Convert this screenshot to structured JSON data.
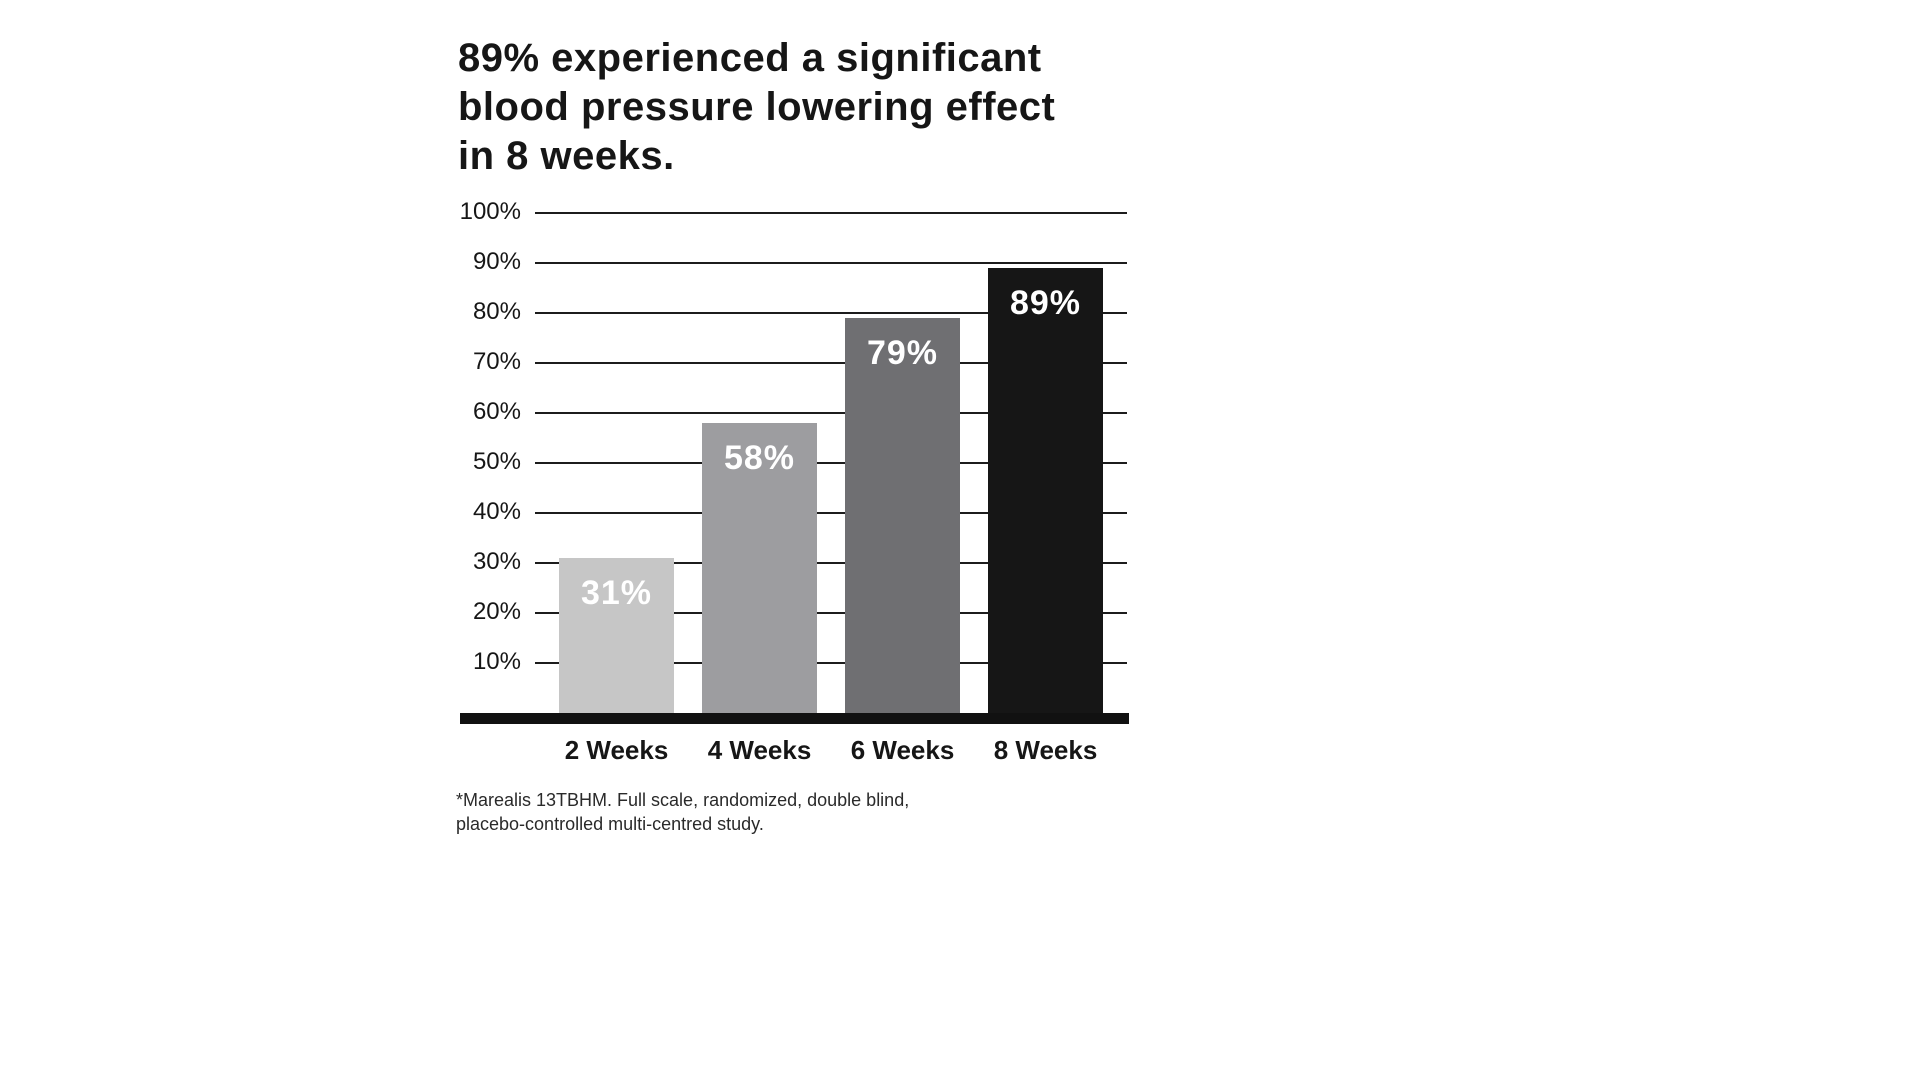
{
  "chart_data": {
    "type": "bar",
    "title": "89% experienced a significant\nblood pressure lowering effect\nin 8 weeks.",
    "categories": [
      "2 Weeks",
      "4 Weeks",
      "6 Weeks",
      "8 Weeks"
    ],
    "values": [
      31,
      58,
      79,
      89
    ],
    "value_labels": [
      "31%",
      "58%",
      "79%",
      "89%"
    ],
    "bar_colors": [
      "#c6c6c6",
      "#9d9da0",
      "#6f6f72",
      "#161616"
    ],
    "xlabel": "",
    "ylabel": "",
    "ylim": [
      0,
      100
    ],
    "yticks": [
      10,
      20,
      30,
      40,
      50,
      60,
      70,
      80,
      90,
      100
    ],
    "ytick_labels": [
      "10%",
      "20%",
      "30%",
      "40%",
      "50%",
      "60%",
      "70%",
      "80%",
      "90%",
      "100%"
    ],
    "grid": true,
    "legend_position": "none",
    "footnote": "*Marealis 13TBHM. Full scale, randomized, double blind,\n placebo-controlled multi-centred study."
  }
}
